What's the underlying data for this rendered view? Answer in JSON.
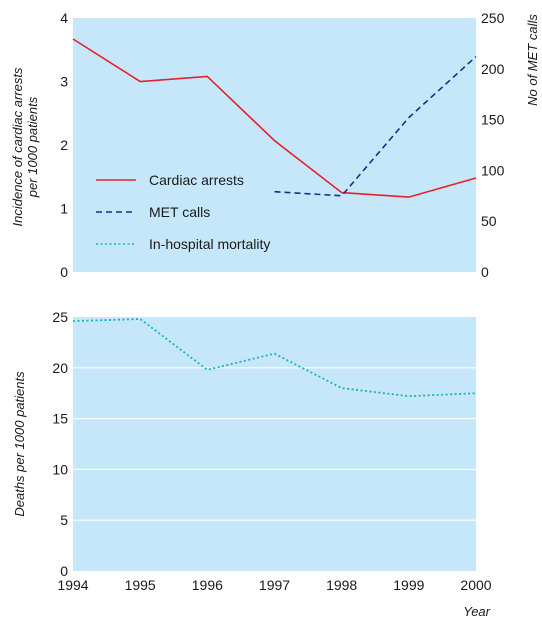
{
  "chart_data": [
    {
      "type": "line",
      "x": [
        1994,
        1995,
        1996,
        1997,
        1998,
        1999,
        2000
      ],
      "ylabel": "Incidence of cardiac arrests\nper 1000 patients",
      "ylabel_right": "No of MET calls",
      "ylim": [
        0,
        4
      ],
      "ylim_right": [
        0,
        250
      ],
      "yticks": [
        "0",
        "1",
        "2",
        "3",
        "4"
      ],
      "yticks_right": [
        "0",
        "50",
        "100",
        "150",
        "200",
        "250"
      ],
      "grid": false,
      "legend_position": "lower-left",
      "series": [
        {
          "name": "Cardiac arrests",
          "axis": "left",
          "color": "#e8202a",
          "style": "solid",
          "x": [
            1994,
            1995,
            1996,
            1997,
            1998,
            1999,
            2000
          ],
          "values": [
            3.67,
            3.0,
            3.08,
            2.07,
            1.25,
            1.18,
            1.48
          ]
        },
        {
          "name": "MET calls",
          "axis": "right",
          "color": "#1b2f8a",
          "style": "dashed",
          "x": [
            1997,
            1998,
            1999,
            2000
          ],
          "values": [
            79,
            75,
            152,
            212
          ]
        },
        {
          "name": "In-hospital mortality",
          "axis": "none",
          "color": "#13b3c4",
          "style": "dotted",
          "x": [],
          "values": []
        }
      ]
    },
    {
      "type": "line",
      "x": [
        1994,
        1995,
        1996,
        1997,
        1998,
        1999,
        2000
      ],
      "xticks": [
        "1994",
        "1995",
        "1996",
        "1997",
        "1998",
        "1999",
        "2000"
      ],
      "xlabel": "Year",
      "ylabel": "Deaths per 1000 patients",
      "ylim": [
        0,
        25
      ],
      "yticks": [
        "0",
        "5",
        "10",
        "15",
        "20",
        "25"
      ],
      "grid": true,
      "series": [
        {
          "axis": "left",
          "color": "#13b3c4",
          "style": "dotted",
          "x": [
            1994,
            1995,
            1996,
            1997,
            1998,
            1999,
            2000
          ],
          "values": [
            24.6,
            24.8,
            19.8,
            21.4,
            18.0,
            17.2,
            17.5
          ]
        }
      ]
    }
  ]
}
